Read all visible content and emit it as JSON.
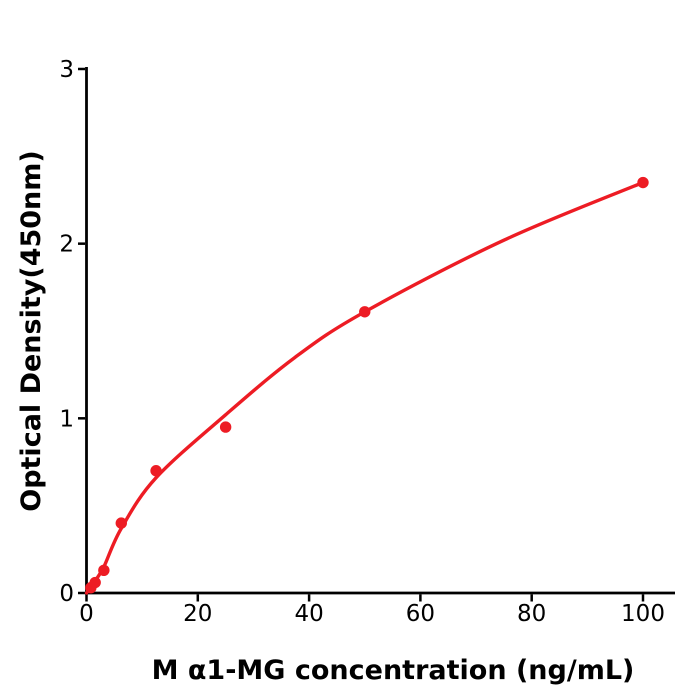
{
  "figure": {
    "background": "#ffffff",
    "axis_color": "#000000",
    "accent_color": "#ed1c24"
  },
  "chart_data": {
    "type": "scatter",
    "title": "",
    "xlabel": "M  α1-MG concentration (ng/mL)",
    "ylabel": "Optical Density(450nm)",
    "xlim": [
      0,
      105.8
    ],
    "ylim": [
      0,
      3
    ],
    "x_ticks": [
      0,
      20,
      40,
      60,
      80,
      100
    ],
    "y_ticks": [
      0,
      1,
      2,
      3
    ],
    "grid": false,
    "legend": "none",
    "marker_color": "#ed1c24",
    "line_color": "#ed1c24",
    "points": [
      {
        "x": 0.78,
        "y": 0.03
      },
      {
        "x": 1.56,
        "y": 0.06
      },
      {
        "x": 3.12,
        "y": 0.13
      },
      {
        "x": 6.25,
        "y": 0.4
      },
      {
        "x": 12.5,
        "y": 0.7
      },
      {
        "x": 25,
        "y": 0.95
      },
      {
        "x": 50,
        "y": 1.61
      },
      {
        "x": 100,
        "y": 2.35
      }
    ],
    "fit_curve": [
      {
        "x": 0,
        "y": 0.0
      },
      {
        "x": 1.56,
        "y": 0.07
      },
      {
        "x": 3.12,
        "y": 0.15
      },
      {
        "x": 6.25,
        "y": 0.37
      },
      {
        "x": 12.5,
        "y": 0.66
      },
      {
        "x": 25,
        "y": 1.02
      },
      {
        "x": 37.5,
        "y": 1.35
      },
      {
        "x": 50,
        "y": 1.61
      },
      {
        "x": 75,
        "y": 2.02
      },
      {
        "x": 100,
        "y": 2.35
      }
    ]
  }
}
